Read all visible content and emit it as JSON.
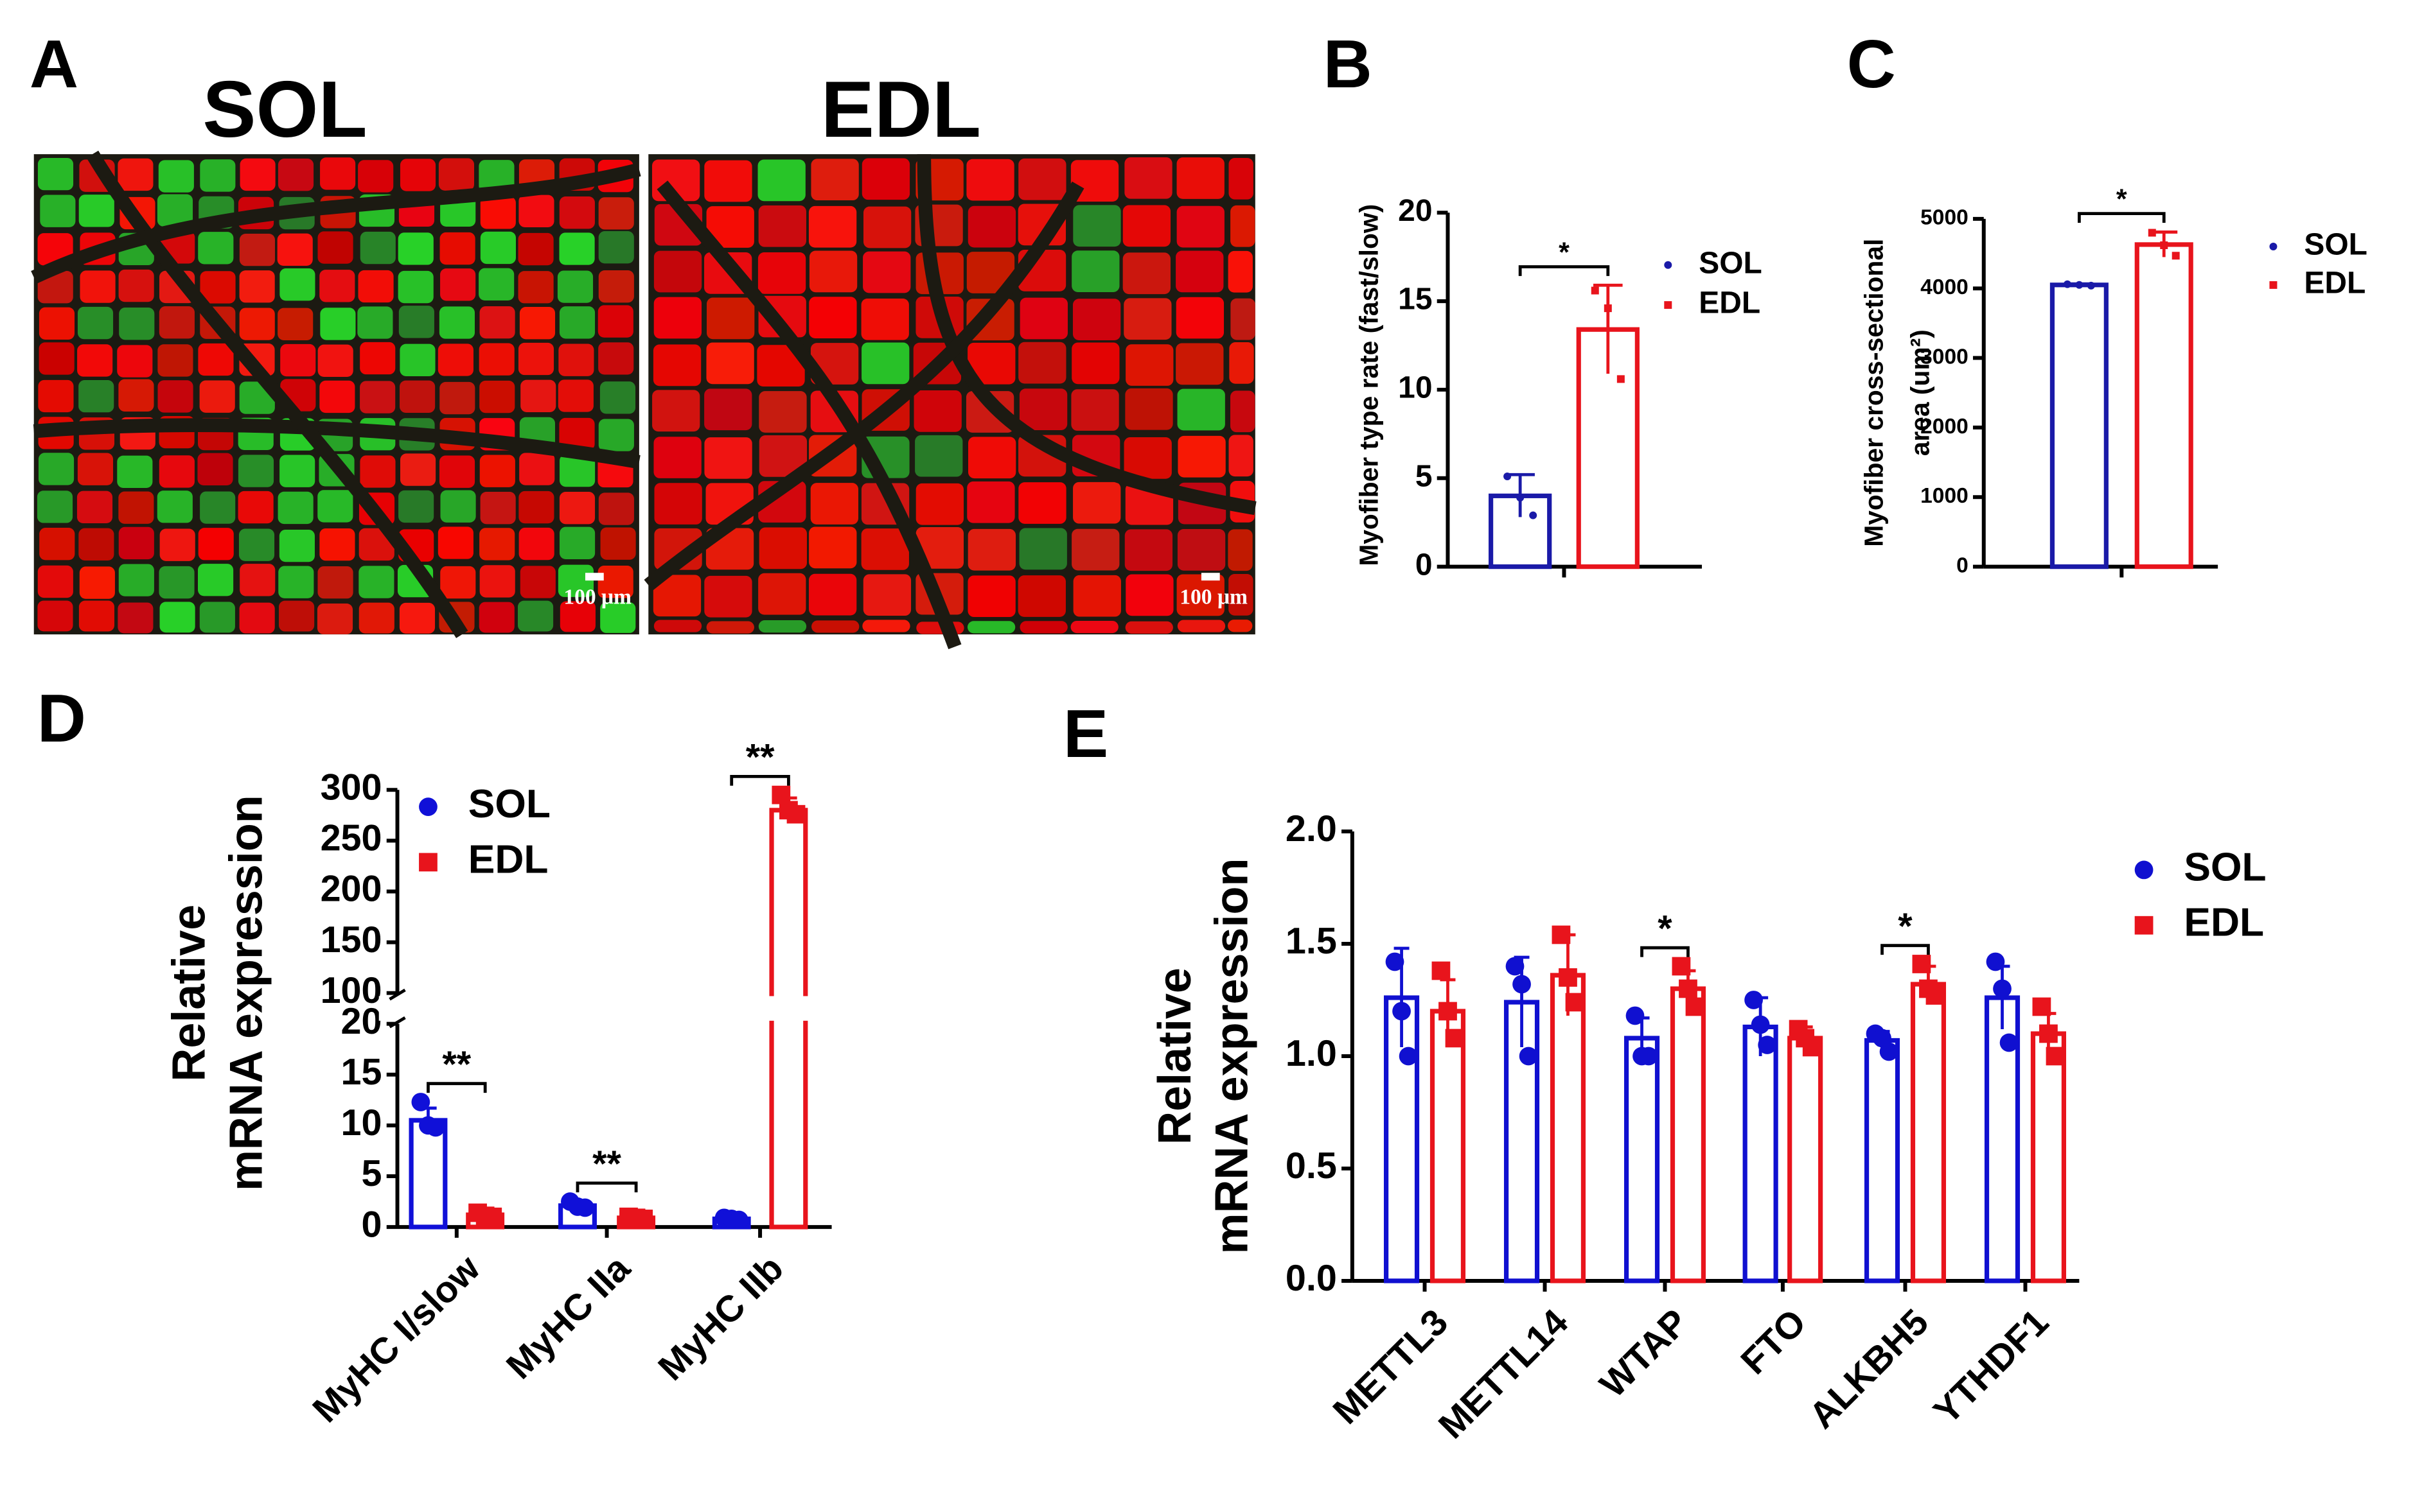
{
  "figure_a": {
    "panel": "A",
    "images": [
      {
        "title": "SOL",
        "scale_bar": "100 μm"
      },
      {
        "title": "EDL",
        "scale_bar": "100 μm"
      }
    ]
  },
  "chart_data": [
    {
      "type": "bar",
      "panel": "B",
      "ylabel": [
        "Myofiber type rate (fast/slow)"
      ],
      "categories": [
        null
      ],
      "significance": [
        "*"
      ],
      "ylim": [
        0,
        20
      ],
      "yticks": [
        0,
        5,
        10,
        15,
        20
      ],
      "series": [
        {
          "name": "SOL",
          "color": "#1a1aa8",
          "marker": "circle",
          "values": [
            4.0
          ],
          "errors": [
            1.2
          ],
          "points": [
            [
              5.1,
              3.9,
              2.9
            ]
          ]
        },
        {
          "name": "EDL",
          "color": "#e8141c",
          "marker": "square",
          "values": [
            13.4
          ],
          "errors": [
            2.5
          ],
          "points": [
            [
              15.6,
              14.6,
              10.6
            ]
          ]
        }
      ]
    },
    {
      "type": "bar",
      "panel": "C",
      "ylabel": [
        "Myofiber cross-sectional",
        "area (um²)"
      ],
      "categories": [
        null
      ],
      "significance": [
        "*"
      ],
      "ylim": [
        0,
        5000
      ],
      "yticks": [
        0,
        1000,
        2000,
        3000,
        4000,
        5000
      ],
      "series": [
        {
          "name": "SOL",
          "color": "#1a1aa8",
          "marker": "circle",
          "values": [
            4050
          ],
          "errors": [
            15
          ],
          "points": [
            [
              4060,
              4050,
              4040
            ]
          ]
        },
        {
          "name": "EDL",
          "color": "#e8141c",
          "marker": "square",
          "values": [
            4630
          ],
          "errors": [
            180
          ],
          "points": [
            [
              4800,
              4620,
              4470
            ]
          ]
        }
      ]
    },
    {
      "type": "bar",
      "panel": "D",
      "ylabel": [
        "Relative",
        "mRNA expression"
      ],
      "categories": [
        "MyHC I/slow",
        "MyHC IIa",
        "MyHC IIb"
      ],
      "significance": [
        "**",
        "**",
        "**"
      ],
      "ylim": [
        0,
        300
      ],
      "y_break": [
        20,
        100
      ],
      "yticks": [
        0,
        5,
        10,
        15,
        20,
        100,
        150,
        200,
        250,
        300
      ],
      "series": [
        {
          "name": "SOL",
          "color": "#1010d8",
          "marker": "circle",
          "values": [
            10.5,
            2.1,
            0.8
          ],
          "errors": [
            1.2,
            0.3,
            0.1
          ],
          "points": [
            [
              12.3,
              10.0,
              9.8
            ],
            [
              2.5,
              2.0,
              1.9
            ],
            [
              0.9,
              0.8,
              0.7
            ]
          ]
        },
        {
          "name": "EDL",
          "color": "#e8141c",
          "marker": "square",
          "values": [
            1.2,
            0.9,
            280
          ],
          "errors": [
            0.2,
            0.1,
            12
          ],
          "points": [
            [
              1.4,
              1.1,
              1.0
            ],
            [
              1.0,
              0.9,
              0.8
            ],
            [
              295,
              280,
              276
            ]
          ]
        }
      ]
    },
    {
      "type": "bar",
      "panel": "E",
      "ylabel": [
        "Relative",
        "mRNA expression"
      ],
      "categories": [
        "METTL3",
        "METTL14",
        "WTAP",
        "FTO",
        "ALKBH5",
        "YTHDF1"
      ],
      "significance": [
        null,
        null,
        "*",
        null,
        "*",
        null
      ],
      "ylim": [
        0,
        2
      ],
      "yticks": [
        {
          "value": 0,
          "label": "0.0"
        },
        {
          "value": 0.5,
          "label": "0.5"
        },
        {
          "value": 1,
          "label": "1.0"
        },
        {
          "value": 1.5,
          "label": "1.5"
        },
        {
          "value": 2,
          "label": "2.0"
        }
      ],
      "series": [
        {
          "name": "SOL",
          "color": "#1010d0",
          "marker": "circle",
          "values": [
            1.26,
            1.24,
            1.08,
            1.13,
            1.07,
            1.26
          ],
          "errors": [
            0.22,
            0.2,
            0.09,
            0.13,
            0.04,
            0.14
          ],
          "points": [
            [
              1.42,
              1.2,
              1.0
            ],
            [
              1.4,
              1.32,
              1.0
            ],
            [
              1.18,
              1.0,
              1.0
            ],
            [
              1.25,
              1.14,
              1.05
            ],
            [
              1.1,
              1.08,
              1.02
            ],
            [
              1.42,
              1.3,
              1.06
            ]
          ]
        },
        {
          "name": "EDL",
          "color": "#e8141c",
          "marker": "square",
          "values": [
            1.2,
            1.36,
            1.3,
            1.08,
            1.32,
            1.1
          ],
          "errors": [
            0.14,
            0.18,
            0.08,
            0.05,
            0.08,
            0.09
          ],
          "points": [
            [
              1.38,
              1.2,
              1.08
            ],
            [
              1.54,
              1.35,
              1.24
            ],
            [
              1.4,
              1.3,
              1.22
            ],
            [
              1.12,
              1.08,
              1.04
            ],
            [
              1.41,
              1.3,
              1.27
            ],
            [
              1.22,
              1.1,
              1.0
            ]
          ]
        }
      ]
    }
  ]
}
